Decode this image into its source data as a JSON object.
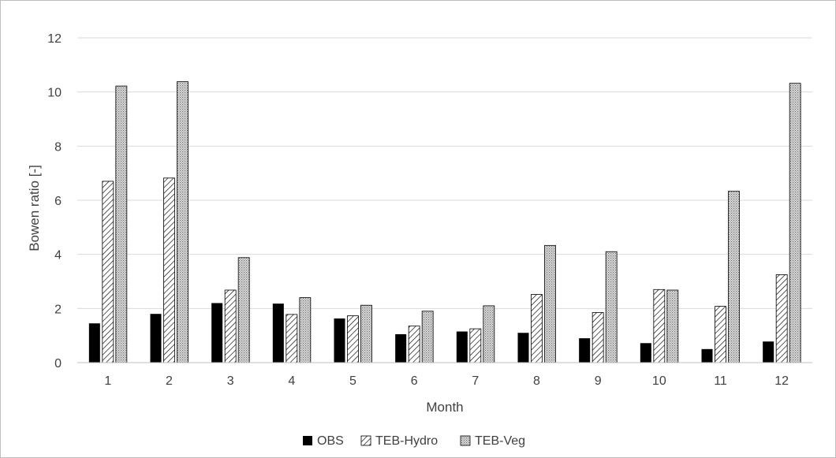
{
  "chart_data": {
    "type": "bar",
    "title": "",
    "xlabel": "Month",
    "ylabel": "Bowen ratio [-]",
    "categories": [
      "1",
      "2",
      "3",
      "4",
      "5",
      "6",
      "7",
      "8",
      "9",
      "10",
      "11",
      "12"
    ],
    "ylim": [
      0,
      12
    ],
    "yticks": [
      0,
      2,
      4,
      6,
      8,
      10,
      12
    ],
    "grid": true,
    "legend_position": "bottom",
    "series": [
      {
        "name": "OBS",
        "values": [
          1.45,
          1.8,
          2.2,
          2.18,
          1.63,
          1.05,
          1.15,
          1.1,
          0.9,
          0.72,
          0.5,
          0.78
        ],
        "color": "#000000",
        "pattern": "solid"
      },
      {
        "name": "TEB-Hydro",
        "values": [
          6.7,
          6.82,
          2.68,
          1.78,
          1.73,
          1.35,
          1.25,
          2.52,
          1.85,
          2.7,
          2.08,
          3.25
        ],
        "color": "#ffffff",
        "pattern": "diagonal-hatch"
      },
      {
        "name": "TEB-Veg",
        "values": [
          10.22,
          10.38,
          3.88,
          2.4,
          2.12,
          1.9,
          2.1,
          4.33,
          4.1,
          2.68,
          6.33,
          10.32
        ],
        "color": "#ffffff",
        "pattern": "dotted-shading"
      }
    ],
    "colors": {
      "axis": "#bfbfbf",
      "grid": "#d9d9d9",
      "text": "#404040",
      "border": "#bfbfbf"
    }
  }
}
